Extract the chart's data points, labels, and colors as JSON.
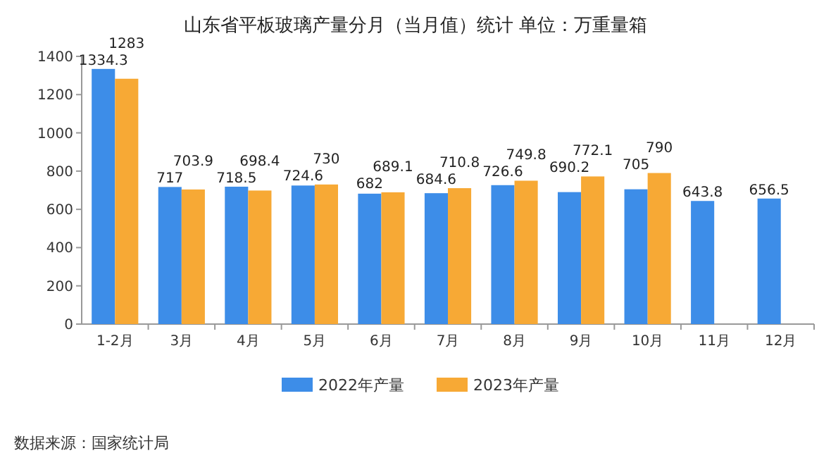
{
  "chart_data": {
    "type": "bar",
    "title": "山东省平板玻璃产量分月（当月值）统计  单位：万重量箱",
    "categories": [
      "1-2月",
      "3月",
      "4月",
      "5月",
      "6月",
      "7月",
      "8月",
      "9月",
      "10月",
      "11月",
      "12月"
    ],
    "series": [
      {
        "name": "2022年产量",
        "color": "#3d8de8",
        "values": [
          1334.3,
          717,
          718.5,
          724.6,
          682,
          684.6,
          726.6,
          690.2,
          705,
          643.8,
          656.5
        ]
      },
      {
        "name": "2023年产量",
        "color": "#f7a935",
        "values": [
          1283,
          703.9,
          698.4,
          730,
          689.1,
          710.8,
          749.8,
          772.1,
          790,
          null,
          null
        ]
      }
    ],
    "ylim": [
      0,
      1400
    ],
    "yticks": [
      0,
      200,
      400,
      600,
      800,
      1000,
      1200,
      1400
    ],
    "data_labels": true,
    "legend": "bottom",
    "annotations": [
      "数据来源：国家统计局"
    ]
  }
}
